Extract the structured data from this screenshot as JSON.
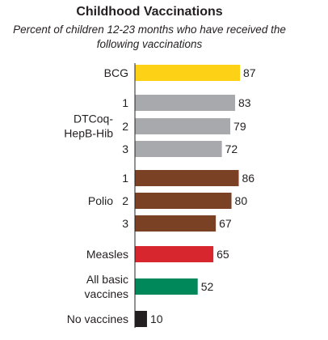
{
  "chart_data": {
    "type": "bar",
    "orientation": "horizontal",
    "title": "Childhood Vaccinations",
    "subtitle": "Percent of children 12-23 months who have received the following vaccinations",
    "xlim": [
      0,
      100
    ],
    "bars": [
      {
        "group": "BCG",
        "dose": "",
        "value": 87,
        "color": "#fcd116"
      },
      {
        "group": "DTCoq-HepB-Hib",
        "dose": "1",
        "value": 83,
        "color": "#a7a9ac"
      },
      {
        "group": "DTCoq-HepB-Hib",
        "dose": "2",
        "value": 79,
        "color": "#a7a9ac"
      },
      {
        "group": "DTCoq-HepB-Hib",
        "dose": "3",
        "value": 72,
        "color": "#a7a9ac"
      },
      {
        "group": "Polio",
        "dose": "1",
        "value": 86,
        "color": "#7b4125"
      },
      {
        "group": "Polio",
        "dose": "2",
        "value": 80,
        "color": "#7b4125"
      },
      {
        "group": "Polio",
        "dose": "3",
        "value": 67,
        "color": "#7b4125"
      },
      {
        "group": "Measles",
        "dose": "",
        "value": 65,
        "color": "#d7262d"
      },
      {
        "group": "All basic vaccines",
        "dose": "",
        "value": 52,
        "color": "#00875a"
      },
      {
        "group": "No vaccines",
        "dose": "",
        "value": 10,
        "color": "#231f20"
      }
    ],
    "groups": [
      {
        "name": "BCG",
        "lines": [
          "BCG"
        ]
      },
      {
        "name": "DTCoq-HepB-Hib",
        "lines": [
          "DTCoq-",
          "HepB-Hib"
        ]
      },
      {
        "name": "Polio",
        "lines": [
          "Polio"
        ]
      },
      {
        "name": "Measles",
        "lines": [
          "Measles"
        ]
      },
      {
        "name": "All basic vaccines",
        "lines": [
          "All basic",
          "vaccines"
        ]
      },
      {
        "name": "No vaccines",
        "lines": [
          "No vaccines"
        ]
      }
    ]
  }
}
